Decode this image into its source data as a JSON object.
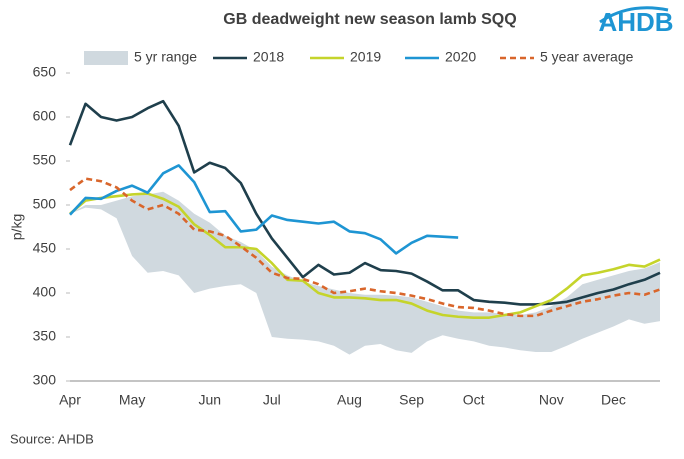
{
  "chart_data": {
    "type": "line",
    "title": "GB deadweight new season lamb SQQ",
    "logo": "AHDB",
    "ylabel": "p/kg",
    "source": "Source: AHDB",
    "categories": [
      "Apr",
      null,
      null,
      null,
      "May",
      null,
      null,
      null,
      null,
      "Jun",
      null,
      null,
      null,
      "Jul",
      null,
      null,
      null,
      null,
      "Aug",
      null,
      null,
      null,
      "Sep",
      null,
      null,
      null,
      "Oct",
      null,
      null,
      null,
      null,
      "Nov",
      null,
      null,
      null,
      "Dec",
      null,
      null,
      null
    ],
    "ylim": [
      300,
      650
    ],
    "yticks": [
      300,
      350,
      400,
      450,
      500,
      550,
      600,
      650
    ],
    "range": {
      "name": "5 yr range",
      "color": "#d0d9df",
      "high": [
        490,
        500,
        500,
        505,
        510,
        512,
        515,
        505,
        490,
        480,
        465,
        458,
        448,
        430,
        420,
        413,
        408,
        404,
        400,
        398,
        398,
        397,
        395,
        390,
        385,
        380,
        378,
        378,
        376,
        375,
        378,
        385,
        395,
        410,
        415,
        420,
        425,
        428,
        435
      ],
      "low": [
        490,
        497,
        495,
        485,
        442,
        423,
        425,
        420,
        400,
        405,
        408,
        410,
        400,
        350,
        348,
        347,
        345,
        340,
        330,
        340,
        342,
        335,
        332,
        345,
        352,
        348,
        345,
        340,
        338,
        335,
        333,
        333,
        340,
        348,
        355,
        362,
        370,
        365,
        368
      ]
    },
    "series": [
      {
        "name": "2018",
        "color": "#1f3f4c",
        "values": [
          568,
          615,
          600,
          596,
          600,
          610,
          618,
          590,
          537,
          548,
          542,
          525,
          490,
          462,
          440,
          418,
          432,
          421,
          423,
          434,
          426,
          425,
          422,
          413,
          403,
          403,
          392,
          390,
          389,
          387,
          387,
          388,
          390,
          395,
          400,
          404,
          410,
          415,
          423
        ]
      },
      {
        "name": "2019",
        "color": "#c5d42b",
        "values": [
          490,
          505,
          508,
          510,
          512,
          513,
          507,
          498,
          478,
          466,
          452,
          452,
          450,
          434,
          415,
          414,
          400,
          395,
          395,
          394,
          392,
          392,
          388,
          380,
          375,
          373,
          372,
          372,
          375,
          378,
          385,
          392,
          405,
          420,
          423,
          427,
          432,
          430,
          438
        ]
      },
      {
        "name": "2020",
        "color": "#1e95d3",
        "values": [
          489,
          508,
          507,
          516,
          522,
          514,
          536,
          545,
          526,
          492,
          493,
          470,
          472,
          488,
          483,
          481,
          479,
          481,
          470,
          468,
          461,
          445,
          457,
          465,
          464,
          463,
          null,
          null,
          null,
          null,
          null,
          null,
          null,
          null,
          null,
          null,
          null,
          null,
          null
        ]
      },
      {
        "name": "5 year average",
        "color": "#d9662b",
        "dashed": true,
        "values": [
          517,
          530,
          527,
          520,
          505,
          495,
          500,
          490,
          472,
          470,
          465,
          453,
          440,
          423,
          417,
          416,
          410,
          400,
          402,
          405,
          402,
          400,
          397,
          393,
          388,
          384,
          383,
          380,
          376,
          374,
          374,
          380,
          385,
          390,
          393,
          397,
          400,
          398,
          404
        ]
      }
    ]
  }
}
